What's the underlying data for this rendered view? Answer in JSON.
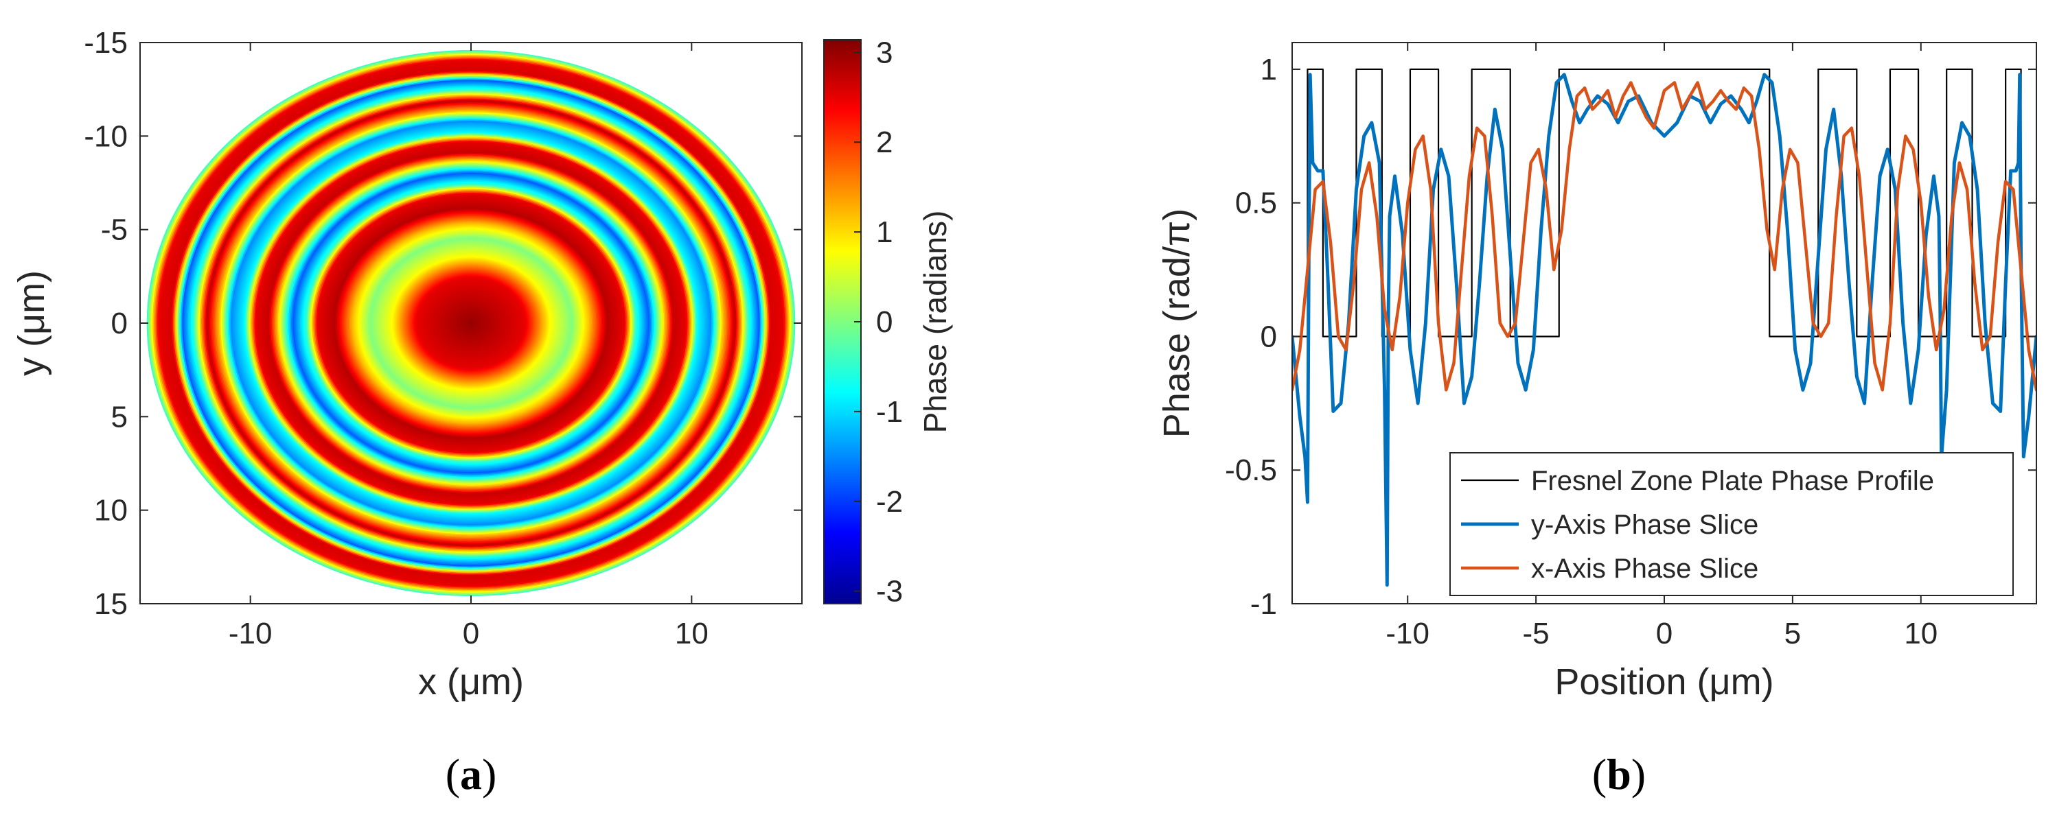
{
  "panels": {
    "a": {
      "tag_open": "(",
      "tag_letter": "a",
      "tag_close": ")"
    },
    "b": {
      "tag_open": "(",
      "tag_letter": "b",
      "tag_close": ")"
    }
  },
  "chart_data": [
    {
      "type": "heatmap",
      "xlabel": "x (μm)",
      "ylabel": "y (μm)",
      "xlim": [
        -15,
        15
      ],
      "ylim": [
        -15,
        15
      ],
      "y_reversed": true,
      "x_ticks": [
        -10,
        0,
        10
      ],
      "y_ticks": [
        -15,
        -10,
        -5,
        0,
        5,
        10,
        15
      ],
      "colorbar": {
        "label": "Phase (radians)",
        "ticks": [
          -3,
          -2,
          -1,
          0,
          1,
          2,
          3
        ],
        "range": [
          -3.14,
          3.14
        ],
        "colormap": "jet"
      },
      "aperture_radius_x": 14.7,
      "aperture_radius_y": 14.6,
      "ring_pattern": [
        {
          "r": 0,
          "phase": 3.0
        },
        {
          "r": 2.5,
          "phase": 2.5
        },
        {
          "r": 3.6,
          "phase": 0.8
        },
        {
          "r": 4.6,
          "phase": 0.0
        },
        {
          "r": 5.4,
          "phase": 1.2
        },
        {
          "r": 6.2,
          "phase": 2.8
        },
        {
          "r": 7.0,
          "phase": 2.5
        },
        {
          "r": 7.5,
          "phase": -0.5
        },
        {
          "r": 8.1,
          "phase": -1.8
        },
        {
          "r": 8.6,
          "phase": 0.3
        },
        {
          "r": 9.2,
          "phase": 2.7
        },
        {
          "r": 9.8,
          "phase": 2.5
        },
        {
          "r": 10.3,
          "phase": -0.8
        },
        {
          "r": 10.9,
          "phase": -1.5
        },
        {
          "r": 11.4,
          "phase": 1.0
        },
        {
          "r": 12.0,
          "phase": 2.8
        },
        {
          "r": 12.6,
          "phase": -0.5
        },
        {
          "r": 13.1,
          "phase": -1.8
        },
        {
          "r": 13.6,
          "phase": 2.6
        },
        {
          "r": 14.2,
          "phase": 2.5
        },
        {
          "r": 14.7,
          "phase": -0.4
        }
      ]
    },
    {
      "type": "line",
      "xlabel": "Position (μm)",
      "ylabel": "Phase (rad/π)",
      "xlim": [
        -14.5,
        14.5
      ],
      "ylim": [
        -1,
        1.1
      ],
      "x_ticks": [
        -10,
        -5,
        0,
        5,
        10
      ],
      "y_ticks": [
        -1,
        -0.5,
        0,
        0.5,
        1
      ],
      "y_tick_labels": [
        "-1",
        "-0.5",
        "0",
        "0.5",
        "1"
      ],
      "legend_position": "bottom-right",
      "series": [
        {
          "name": "Fresnel Zone Plate Phase Profile",
          "color": "#000000",
          "x": [
            -14.5,
            -13.9,
            -13.9,
            -13.3,
            -13.3,
            -12.0,
            -12.0,
            -11.0,
            -11.0,
            -9.9,
            -9.9,
            -8.8,
            -8.8,
            -7.5,
            -7.5,
            -6.0,
            -6.0,
            -4.1,
            -4.1,
            4.1,
            4.1,
            6.0,
            6.0,
            7.5,
            7.5,
            8.8,
            8.8,
            9.9,
            9.9,
            11.0,
            11.0,
            12.0,
            12.0,
            13.3,
            13.3,
            13.9,
            13.9,
            14.5
          ],
          "y": [
            0,
            0,
            1,
            1,
            0,
            0,
            1,
            1,
            0,
            0,
            1,
            1,
            0,
            0,
            1,
            1,
            0,
            0,
            1,
            1,
            0,
            0,
            1,
            1,
            0,
            0,
            1,
            1,
            0,
            0,
            1,
            1,
            0,
            0,
            1,
            1,
            0,
            0
          ]
        },
        {
          "name": "y-Axis Phase Slice",
          "color": "#0072bd",
          "x": [
            -14.5,
            -14.2,
            -14.0,
            -13.9,
            -13.85,
            -13.8,
            -13.7,
            -13.5,
            -13.3,
            -13.1,
            -12.9,
            -12.6,
            -12.3,
            -12.0,
            -11.7,
            -11.4,
            -11.1,
            -10.9,
            -10.8,
            -10.75,
            -10.7,
            -10.5,
            -10.2,
            -9.9,
            -9.6,
            -9.3,
            -9.0,
            -8.7,
            -8.4,
            -8.1,
            -7.8,
            -7.5,
            -7.2,
            -6.9,
            -6.6,
            -6.3,
            -6.0,
            -5.7,
            -5.4,
            -5.1,
            -4.8,
            -4.5,
            -4.2,
            -3.9,
            -3.6,
            -3.3,
            -3.0,
            -2.6,
            -2.2,
            -1.8,
            -1.4,
            -1.0,
            -0.5,
            0.0,
            0.5,
            1.0,
            1.4,
            1.8,
            2.2,
            2.6,
            3.0,
            3.3,
            3.6,
            3.9,
            4.2,
            4.5,
            4.8,
            5.1,
            5.4,
            5.7,
            6.0,
            6.3,
            6.6,
            6.9,
            7.2,
            7.5,
            7.8,
            8.1,
            8.4,
            8.7,
            9.0,
            9.3,
            9.6,
            9.9,
            10.2,
            10.5,
            10.7,
            10.75,
            10.8,
            11.0,
            11.3,
            11.6,
            11.9,
            12.2,
            12.5,
            12.8,
            13.1,
            13.3,
            13.5,
            13.7,
            13.8,
            13.85,
            13.9,
            14.0,
            14.2,
            14.5
          ],
          "y": [
            0.0,
            -0.3,
            -0.45,
            -0.62,
            0.3,
            0.98,
            0.65,
            0.62,
            0.62,
            0.2,
            -0.28,
            -0.25,
            0.05,
            0.55,
            0.75,
            0.8,
            0.65,
            -0.2,
            -0.93,
            0.1,
            0.45,
            0.6,
            0.38,
            -0.05,
            -0.25,
            0.05,
            0.55,
            0.7,
            0.6,
            0.2,
            -0.25,
            -0.15,
            0.2,
            0.6,
            0.85,
            0.7,
            0.3,
            -0.1,
            -0.2,
            -0.05,
            0.4,
            0.75,
            0.95,
            0.98,
            0.88,
            0.8,
            0.85,
            0.9,
            0.87,
            0.8,
            0.88,
            0.9,
            0.8,
            0.75,
            0.8,
            0.9,
            0.88,
            0.8,
            0.87,
            0.9,
            0.85,
            0.8,
            0.88,
            0.98,
            0.95,
            0.75,
            0.4,
            -0.05,
            -0.2,
            -0.1,
            0.3,
            0.7,
            0.85,
            0.6,
            0.2,
            -0.15,
            -0.25,
            0.2,
            0.6,
            0.7,
            0.55,
            0.05,
            -0.25,
            -0.05,
            0.38,
            0.6,
            0.45,
            0.1,
            -0.45,
            -0.2,
            0.65,
            0.8,
            0.75,
            0.55,
            0.05,
            -0.25,
            -0.28,
            0.2,
            0.62,
            0.62,
            0.65,
            0.98,
            0.3,
            -0.45,
            -0.3,
            0.0
          ]
        },
        {
          "name": "x-Axis Phase Slice",
          "color": "#d95319",
          "x": [
            -14.5,
            -14.2,
            -13.9,
            -13.6,
            -13.3,
            -13.0,
            -12.7,
            -12.4,
            -12.1,
            -11.8,
            -11.5,
            -11.2,
            -10.9,
            -10.6,
            -10.3,
            -10.0,
            -9.7,
            -9.4,
            -9.1,
            -8.8,
            -8.5,
            -8.2,
            -7.9,
            -7.6,
            -7.3,
            -7.0,
            -6.7,
            -6.4,
            -6.1,
            -5.8,
            -5.5,
            -5.2,
            -4.9,
            -4.6,
            -4.3,
            -4.0,
            -3.7,
            -3.4,
            -3.1,
            -2.8,
            -2.5,
            -2.2,
            -1.9,
            -1.6,
            -1.3,
            -1.0,
            -0.7,
            -0.4,
            0.0,
            0.4,
            0.7,
            1.0,
            1.3,
            1.6,
            1.9,
            2.2,
            2.5,
            2.8,
            3.1,
            3.4,
            3.7,
            4.0,
            4.3,
            4.6,
            4.9,
            5.2,
            5.5,
            5.8,
            6.1,
            6.4,
            6.7,
            7.0,
            7.3,
            7.6,
            7.9,
            8.2,
            8.5,
            8.8,
            9.1,
            9.4,
            9.7,
            10.0,
            10.3,
            10.6,
            10.9,
            11.2,
            11.5,
            11.8,
            12.1,
            12.4,
            12.7,
            13.0,
            13.3,
            13.6,
            13.9,
            14.2,
            14.5
          ],
          "y": [
            -0.2,
            -0.05,
            0.25,
            0.55,
            0.58,
            0.35,
            0.0,
            -0.05,
            0.2,
            0.55,
            0.65,
            0.45,
            0.1,
            -0.05,
            0.15,
            0.5,
            0.7,
            0.75,
            0.55,
            0.05,
            -0.2,
            -0.1,
            0.25,
            0.6,
            0.78,
            0.75,
            0.45,
            0.05,
            0.0,
            0.05,
            0.35,
            0.65,
            0.7,
            0.55,
            0.25,
            0.4,
            0.7,
            0.9,
            0.93,
            0.85,
            0.88,
            0.92,
            0.82,
            0.9,
            0.95,
            0.88,
            0.82,
            0.78,
            0.92,
            0.95,
            0.85,
            0.9,
            0.95,
            0.85,
            0.88,
            0.92,
            0.88,
            0.85,
            0.93,
            0.9,
            0.7,
            0.4,
            0.25,
            0.55,
            0.7,
            0.65,
            0.35,
            0.05,
            0.0,
            0.05,
            0.45,
            0.75,
            0.78,
            0.6,
            0.25,
            -0.1,
            -0.2,
            0.05,
            0.55,
            0.75,
            0.7,
            0.5,
            0.15,
            -0.05,
            0.1,
            0.45,
            0.65,
            0.55,
            0.2,
            -0.05,
            0.0,
            0.35,
            0.58,
            0.55,
            0.25,
            -0.05,
            -0.2
          ]
        }
      ]
    }
  ]
}
